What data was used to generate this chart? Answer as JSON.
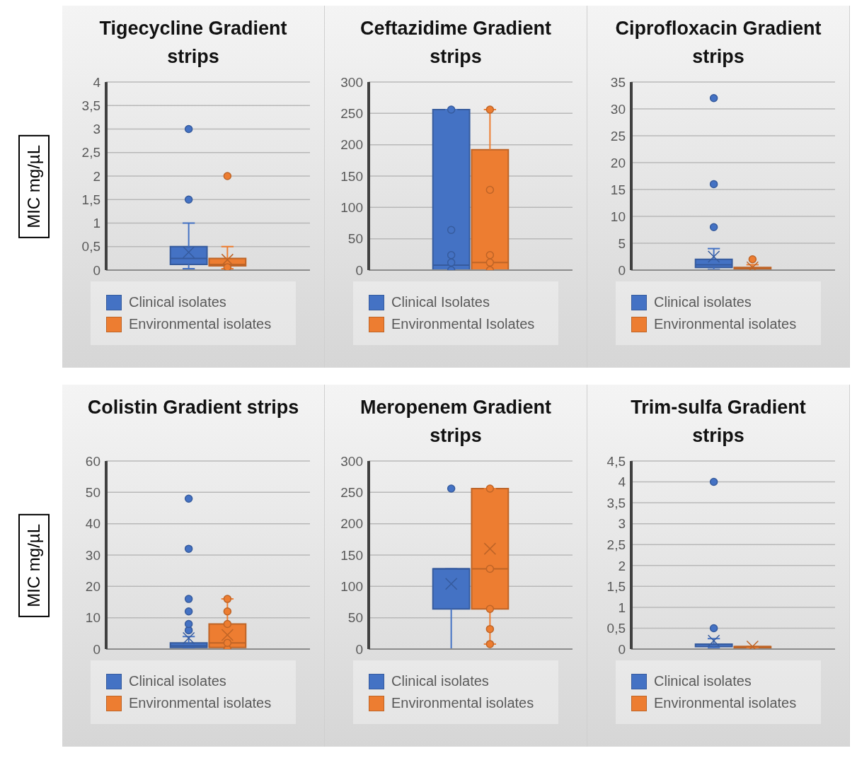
{
  "chart_data": [
    {
      "type": "box",
      "title": "Tigecycline Gradient strips",
      "ylabel": "MIC mg/µL",
      "categories": [
        null
      ],
      "ylim": [
        0,
        4
      ],
      "yticks": [
        0,
        {
          "value": 0.5,
          "label": "0,5"
        },
        1,
        {
          "value": 1.5,
          "label": "1,5"
        },
        2,
        {
          "value": 2.5,
          "label": "2,5"
        },
        3,
        {
          "value": 3.5,
          "label": "3,5"
        },
        4
      ],
      "grid": "y",
      "legend": "bottom",
      "series": [
        {
          "name": "Clinical isolates",
          "color": "#4472c4",
          "boxes": [
            {
              "low": 0.03,
              "q1": 0.12,
              "median": 0.25,
              "q3": 0.5,
              "high": 1,
              "mean": 0.38,
              "outliers": [
                1.5,
                3
              ]
            }
          ]
        },
        {
          "name": "Environmental isolates",
          "color": "#ed7d31",
          "boxes": [
            {
              "low": 0.03,
              "q1": 0.09,
              "median": 0.12,
              "q3": 0.25,
              "high": 0.5,
              "mean": 0.22,
              "outliers": [
                0.06,
                2
              ]
            }
          ]
        }
      ]
    },
    {
      "type": "box",
      "title": "Ceftazidime Gradient strips",
      "categories": [
        null
      ],
      "ylim": [
        0,
        300
      ],
      "yticks": [
        0,
        50,
        100,
        150,
        200,
        250,
        300
      ],
      "grid": "y",
      "legend": "bottom",
      "series": [
        {
          "name": "Clinical Isolates",
          "color": "#4472c4",
          "boxes": [
            {
              "low": 0,
              "q1": 0,
              "median": 8,
              "q3": 256,
              "high": 256,
              "outliers": [
                0,
                12,
                24,
                64,
                256
              ]
            }
          ]
        },
        {
          "name": "Environmental Isolates",
          "color": "#ed7d31",
          "boxes": [
            {
              "low": 0,
              "q1": 0,
              "median": 12,
              "q3": 192,
              "high": 256,
              "outliers": [
                0,
                12,
                24,
                128,
                256
              ]
            }
          ]
        }
      ]
    },
    {
      "type": "box",
      "title": "Ciprofloxacin Gradient strips",
      "categories": [
        null
      ],
      "ylim": [
        0,
        35
      ],
      "yticks": [
        0,
        5,
        10,
        15,
        20,
        25,
        30,
        35
      ],
      "grid": "y",
      "legend": "bottom",
      "series": [
        {
          "name": "Clinical isolates",
          "color": "#4472c4",
          "boxes": [
            {
              "low": 0.12,
              "q1": 0.5,
              "median": 1,
              "q3": 2,
              "high": 4,
              "mean": 2.5,
              "outliers": [
                8,
                16,
                32
              ]
            }
          ]
        },
        {
          "name": "Environmental isolates",
          "color": "#ed7d31",
          "boxes": [
            {
              "low": 0.06,
              "q1": 0.12,
              "median": 0.25,
              "q3": 0.5,
              "high": 1,
              "mean": 0.5,
              "outliers": [
                2
              ]
            }
          ]
        }
      ]
    },
    {
      "type": "box",
      "title": "Colistin Gradient strips",
      "ylabel": "MIC mg/µL",
      "categories": [
        null
      ],
      "ylim": [
        0,
        60
      ],
      "yticks": [
        0,
        10,
        20,
        30,
        40,
        50,
        60
      ],
      "grid": "y",
      "legend": "bottom",
      "series": [
        {
          "name": "Clinical isolates",
          "color": "#4472c4",
          "boxes": [
            {
              "low": 0.25,
              "q1": 0.5,
              "median": 1,
              "q3": 2,
              "high": 4,
              "mean": 3.5,
              "outliers": [
                6,
                8,
                12,
                16,
                32,
                48
              ]
            }
          ]
        },
        {
          "name": "Environmental isolates",
          "color": "#ed7d31",
          "boxes": [
            {
              "low": 0,
              "q1": 0.5,
              "median": 2,
              "q3": 8,
              "high": 16,
              "mean": 4.5,
              "outliers": [
                0,
                2,
                8,
                12,
                16
              ]
            }
          ]
        }
      ]
    },
    {
      "type": "box",
      "title": "Meropenem Gradient strips",
      "categories": [
        null
      ],
      "ylim": [
        0,
        300
      ],
      "yticks": [
        0,
        50,
        100,
        150,
        200,
        250,
        300
      ],
      "grid": "y",
      "legend": "bottom",
      "series": [
        {
          "name": "Clinical isolates",
          "color": "#4472c4",
          "boxes": [
            {
              "low": 0,
              "q1": 64,
              "median": 128,
              "q3": 128,
              "high": 128,
              "mean": 104,
              "outliers": [
                256
              ]
            }
          ]
        },
        {
          "name": "Environmental isolates",
          "color": "#ed7d31",
          "boxes": [
            {
              "low": 8,
              "q1": 64,
              "median": 128,
              "q3": 256,
              "high": 256,
              "mean": 160,
              "outliers": [
                8,
                32,
                64,
                128,
                256
              ]
            }
          ]
        }
      ]
    },
    {
      "type": "box",
      "title": "Trim-sulfa Gradient strips",
      "categories": [
        null
      ],
      "ylim": [
        0,
        4.5
      ],
      "yticks": [
        0,
        {
          "value": 0.5,
          "label": "0,5"
        },
        1,
        {
          "value": 1.5,
          "label": "1,5"
        },
        2,
        {
          "value": 2.5,
          "label": "2,5"
        },
        3,
        {
          "value": 3.5,
          "label": "3,5"
        },
        4,
        {
          "value": 4.5,
          "label": "4,5"
        }
      ],
      "grid": "y",
      "legend": "bottom",
      "series": [
        {
          "name": "Clinical isolates",
          "color": "#4472c4",
          "boxes": [
            {
              "low": 0.03,
              "q1": 0.06,
              "median": 0.12,
              "q3": 0.12,
              "high": 0.25,
              "mean": 0.2,
              "outliers": [
                0.5,
                4
              ]
            }
          ]
        },
        {
          "name": "Environmental isolates",
          "color": "#ed7d31",
          "boxes": [
            {
              "low": 0.03,
              "q1": 0.03,
              "median": 0.06,
              "q3": 0.06,
              "high": 0.06,
              "mean": 0.06
            }
          ]
        }
      ]
    }
  ]
}
